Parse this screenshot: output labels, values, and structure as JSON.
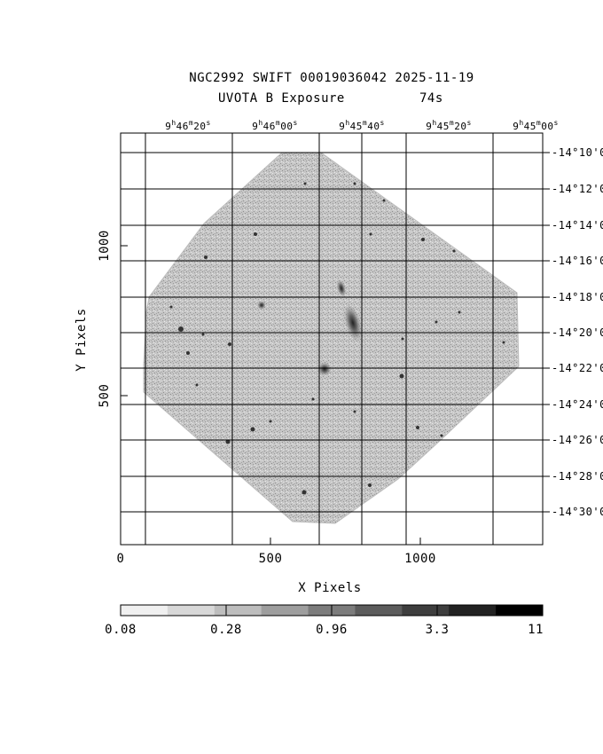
{
  "title": {
    "line1": "NGC2992 SWIFT 00019036042 2025-11-19",
    "line2_left": "UVOTA B Exposure",
    "line2_right": "74s"
  },
  "axes": {
    "xlabel": "X Pixels",
    "ylabel": "Y Pixels",
    "x_ticks": [
      "0",
      "500",
      "1000"
    ],
    "y_ticks": [
      "500",
      "1000"
    ],
    "ra_ticks": [
      {
        "h": "9",
        "m": "46",
        "s": "20"
      },
      {
        "h": "9",
        "m": "46",
        "s": "00"
      },
      {
        "h": "9",
        "m": "45",
        "s": "40"
      },
      {
        "h": "9",
        "m": "45",
        "s": "20"
      },
      {
        "h": "9",
        "m": "45",
        "s": "00"
      }
    ],
    "dec_ticks": [
      "-14°10'0",
      "-14°12'0",
      "-14°14'0",
      "-14°16'0",
      "-14°18'0",
      "-14°20'0",
      "-14°22'0",
      "-14°24'0",
      "-14°26'0",
      "-14°28'0",
      "-14°30'0"
    ]
  },
  "colorbar": {
    "ticks": [
      "0.08",
      "0.28",
      "0.96",
      "3.3",
      "11"
    ],
    "colors": [
      "#f0f0f0",
      "#d8d8d8",
      "#bdbdbd",
      "#9e9e9e",
      "#7c7c7c",
      "#5c5c5c",
      "#3e3e3e",
      "#222222",
      "#000000"
    ]
  }
}
